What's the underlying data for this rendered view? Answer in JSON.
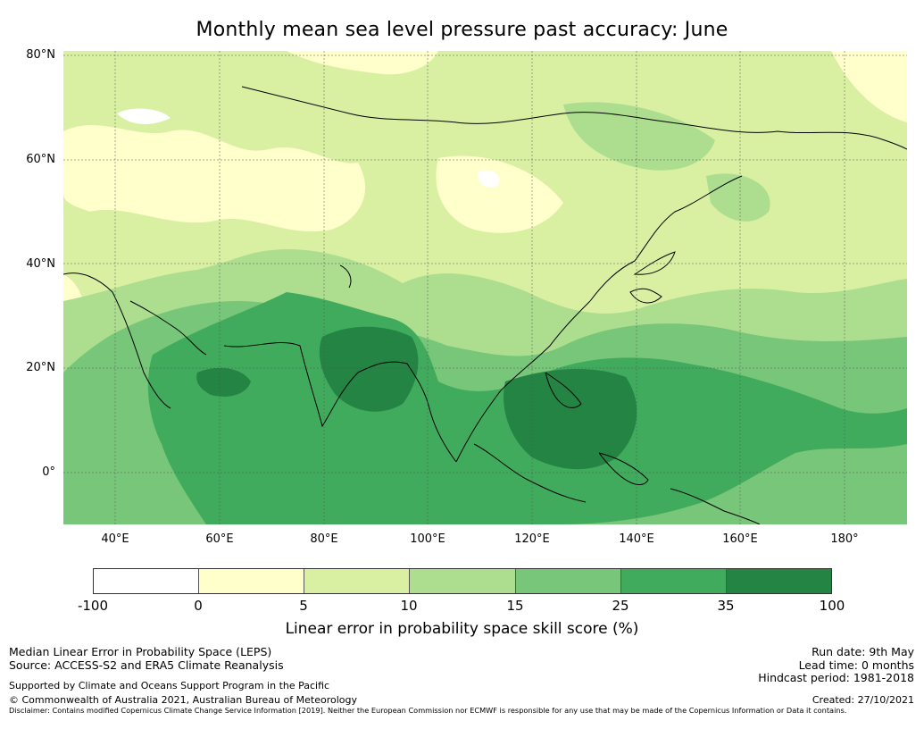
{
  "title": "Monthly mean sea level pressure past accuracy: June",
  "map": {
    "lat_labels": [
      "80°N",
      "60°N",
      "40°N",
      "20°N",
      "0°"
    ],
    "lon_labels": [
      "40°E",
      "60°E",
      "80°E",
      "100°E",
      "120°E",
      "140°E",
      "160°E",
      "180°"
    ],
    "lon_range": [
      30,
      192
    ],
    "lat_range": [
      -10,
      81
    ],
    "gridlines": true
  },
  "colorbar": {
    "ticks": [
      "-100",
      "0",
      "5",
      "10",
      "15",
      "25",
      "35",
      "100"
    ],
    "colors": [
      "#ffffff",
      "#ffffcc",
      "#d9f0a3",
      "#addd8e",
      "#78c679",
      "#41ab5d",
      "#238443"
    ],
    "label": "Linear error in probability space skill score (%)"
  },
  "footer": {
    "left_line1": "Median Linear Error in Probability Space (LEPS)",
    "left_line2": "Source: ACCESS-S2 and ERA5 Climate Reanalysis",
    "supported": "Supported by Climate and Oceans Support Program in the Pacific",
    "copyright": "© Commonwealth of Australia 2021, Australian Bureau of Meteorology",
    "disclaimer": "Disclaimer: Contains modified Copernicus Climate Change Service Information [2019]. Neither the European Commission nor ECMWF is responsible for any use that may be made of the Copernicus Information or Data it contains.",
    "run_date": "Run date: 9th May",
    "lead_time": "Lead time: 0 months",
    "hindcast": "Hindcast period: 1981-2018",
    "created": "Created: 27/10/2021"
  }
}
